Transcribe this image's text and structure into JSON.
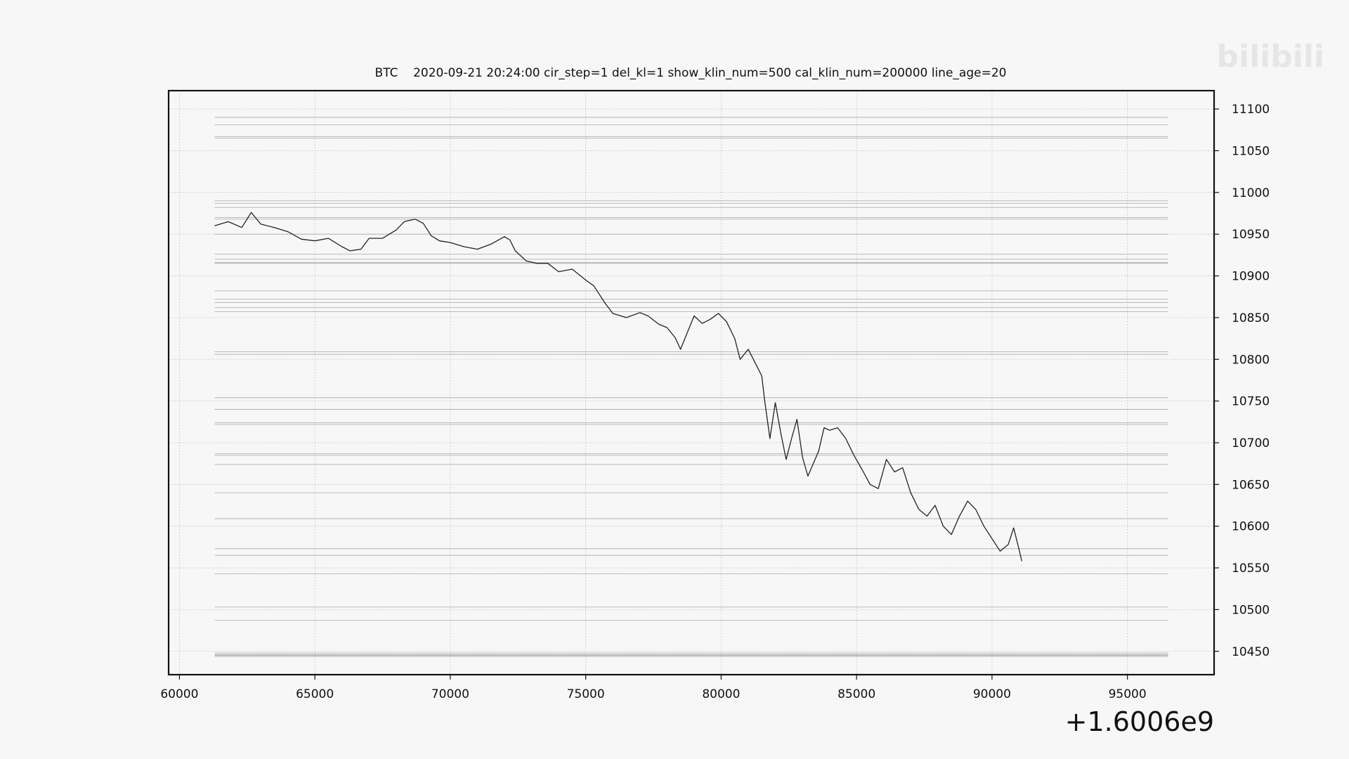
{
  "watermark": {
    "text": "bilibili"
  },
  "chart_data": {
    "type": "line",
    "title": "BTC    2020-09-21 20:24:00 cir_step=1 del_kl=1 show_klin_num=500 cal_klin_num=200000 line_age=20",
    "xlabel": "",
    "ylabel": "",
    "x_offset_label": "+1.6006e9",
    "xlim": [
      59600,
      98200
    ],
    "ylim": [
      10422,
      11122
    ],
    "x_ticks": [
      60000,
      65000,
      70000,
      75000,
      80000,
      85000,
      90000,
      95000
    ],
    "x_tick_labels": [
      "60000",
      "65000",
      "70000",
      "75000",
      "80000",
      "85000",
      "90000",
      "95000"
    ],
    "y_ticks": [
      10450,
      10500,
      10550,
      10600,
      10650,
      10700,
      10750,
      10800,
      10850,
      10900,
      10950,
      11000,
      11050,
      11100
    ],
    "y_tick_labels": [
      "10450",
      "10500",
      "10550",
      "10600",
      "10650",
      "10700",
      "10750",
      "10800",
      "10850",
      "10900",
      "10950",
      "11000",
      "11050",
      "11100"
    ],
    "y_axis_side": "right",
    "grid": true,
    "legend": "none",
    "line_color": "#222222",
    "level_color": "#999999",
    "levels": {
      "x_range": [
        61300,
        96500
      ],
      "values": [
        11090,
        11081,
        11067,
        11065,
        10990,
        10987,
        10982,
        10970,
        10968,
        10950,
        10926,
        10920,
        10916,
        10915,
        10882,
        10872,
        10868,
        10862,
        10857,
        10809,
        10806,
        10754,
        10740,
        10724,
        10722,
        10687,
        10685,
        10674,
        10640,
        10609,
        10573,
        10565,
        10543,
        10503,
        10487,
        10448,
        10446,
        10445,
        10444
      ]
    },
    "series": [
      {
        "x": [
          61300,
          61800,
          62300,
          62650,
          63000,
          63500,
          64000,
          64500,
          65000,
          65500,
          66000,
          66300,
          66700,
          67000,
          67500,
          68000,
          68300,
          68700,
          69000,
          69300,
          69600,
          70000,
          70500,
          71000,
          71500,
          72000,
          72200,
          72400,
          72800,
          73200,
          73600,
          74000,
          74500,
          75000,
          75300,
          75700,
          76000,
          76500,
          77000,
          77300,
          77700,
          78000,
          78300,
          78500,
          78700,
          79000,
          79300,
          79600,
          79900,
          80200,
          80500,
          80700,
          81000,
          81300,
          81500,
          81600,
          81800,
          82000,
          82200,
          82400,
          82600,
          82800,
          83000,
          83200,
          83400,
          83600,
          83800,
          84000,
          84300,
          84600,
          84900,
          85200,
          85500,
          85800,
          86100,
          86400,
          86700,
          87000,
          87300,
          87600,
          87900,
          88200,
          88500,
          88800,
          89100,
          89400,
          89700,
          90000,
          90300,
          90600,
          90800,
          91000,
          91100
        ],
        "y": [
          10960,
          10965,
          10958,
          10976,
          10962,
          10958,
          10953,
          10944,
          10942,
          10945,
          10935,
          10930,
          10932,
          10945,
          10945,
          10955,
          10965,
          10968,
          10963,
          10948,
          10942,
          10940,
          10935,
          10932,
          10938,
          10947,
          10943,
          10930,
          10918,
          10915,
          10915,
          10905,
          10908,
          10895,
          10888,
          10868,
          10855,
          10850,
          10856,
          10852,
          10842,
          10838,
          10826,
          10812,
          10828,
          10852,
          10843,
          10848,
          10855,
          10845,
          10825,
          10800,
          10812,
          10793,
          10780,
          10752,
          10705,
          10748,
          10712,
          10680,
          10705,
          10728,
          10683,
          10660,
          10675,
          10690,
          10718,
          10715,
          10718,
          10705,
          10685,
          10668,
          10650,
          10645,
          10680,
          10665,
          10670,
          10640,
          10620,
          10612,
          10625,
          10600,
          10590,
          10612,
          10630,
          10620,
          10600,
          10585,
          10570,
          10578,
          10598,
          10572,
          10558
        ]
      }
    ]
  }
}
